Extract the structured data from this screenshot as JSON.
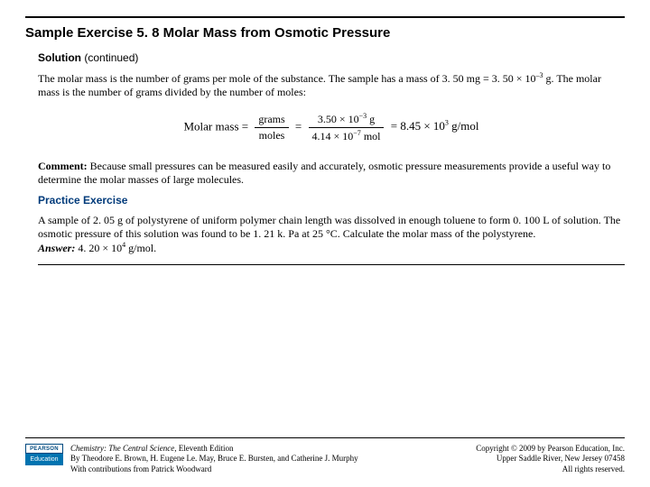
{
  "title": "Sample Exercise 5. 8 Molar Mass from Osmotic Pressure",
  "solution": {
    "heading": "Solution",
    "cont": "(continued)",
    "para1": "The molar mass is the number of grams per mole of the substance. The sample has a mass of 3. 50 mg = 3. 50 × 10",
    "para1_exp": "–3",
    "para1_b": " g. The molar mass is the number of grams divided by the number of moles:",
    "eq_label": "Molar mass =",
    "eq_frac1_num": "grams",
    "eq_frac1_den": "moles",
    "eq_mid": " = ",
    "eq_frac2_num_a": "3.50 × 10",
    "eq_frac2_num_exp": "−3",
    "eq_frac2_num_b": " g",
    "eq_frac2_den_a": "4.14 × 10",
    "eq_frac2_den_exp": "−7",
    "eq_frac2_den_b": " mol",
    "eq_rhs_a": " = 8.45 × 10",
    "eq_rhs_exp": "3",
    "eq_rhs_b": " g/mol",
    "comment_label": "Comment:",
    "comment_text": " Because small pressures can be measured easily and accurately, osmotic pressure measurements provide a useful way to determine the molar masses of large molecules."
  },
  "practice": {
    "heading": "Practice Exercise",
    "para": "A sample of 2. 05 g of polystyrene of uniform polymer chain length was dissolved in enough toluene to form 0. 100 L of solution. The osmotic pressure of this solution was found to be 1. 21 k. Pa at 25 °C. Calculate the molar mass of the polystyrene.",
    "answer_label": "Answer:",
    "answer_a": " 4. 20 × 10",
    "answer_exp": "4",
    "answer_b": " g/mol."
  },
  "footer": {
    "logo_top": "PEARSON",
    "logo_bot": "Education",
    "book": "Chemistry: The Central Science,",
    "edition": " Eleventh Edition",
    "authors": "By Theodore E. Brown, H. Eugene Le. May, Bruce E. Bursten, and Catherine J. Murphy",
    "contrib": "With contributions from Patrick Woodward",
    "copyright1": "Copyright © 2009 by Pearson Education, Inc.",
    "copyright2": "Upper Saddle River, New Jersey 07458",
    "copyright3": "All rights reserved."
  }
}
